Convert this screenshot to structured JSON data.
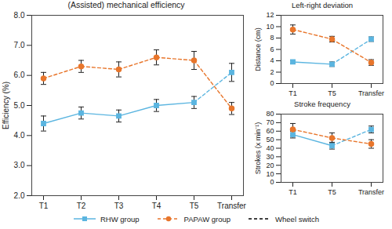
{
  "chart_data": [
    {
      "type": "line",
      "title": "(Assisted) mechanical efficiency",
      "y_label": "Efficiency (%)",
      "categories": [
        "T1",
        "T2",
        "T3",
        "T4",
        "T5",
        "Transfer"
      ],
      "ylim": [
        2,
        8
      ],
      "yticks": [
        2,
        3,
        4,
        5,
        6,
        7,
        8
      ],
      "grid": false,
      "legend": "bottom",
      "series": [
        {
          "name": "RHW group",
          "color": "#5bb5e0",
          "marker": "square",
          "line_style": "solid",
          "values": [
            4.4,
            4.75,
            4.65,
            5.0,
            5.1,
            6.1
          ],
          "errors": [
            0.25,
            0.2,
            0.2,
            0.2,
            0.2,
            0.3
          ]
        },
        {
          "name": "PAPAW group",
          "color": "#e8762c",
          "marker": "circle",
          "line_style": "dashed",
          "values": [
            5.9,
            6.3,
            6.2,
            6.6,
            6.5,
            4.9
          ],
          "errors": [
            0.2,
            0.2,
            0.25,
            0.25,
            0.3,
            0.2
          ]
        }
      ],
      "annotations": [
        {
          "text": "Wheel switch",
          "color": "#000000",
          "line_style": "dashed",
          "from": "T5",
          "to": "Transfer"
        }
      ]
    },
    {
      "type": "line",
      "title": "Left-right deviation",
      "y_label": "Distance (cm)",
      "categories": [
        "T1",
        "T5",
        "Transfer"
      ],
      "ylim": [
        0,
        12
      ],
      "yticks": [
        0,
        2,
        4,
        6,
        8,
        10,
        12
      ],
      "grid": false,
      "series": [
        {
          "name": "RHW group",
          "color": "#5bb5e0",
          "marker": "square",
          "line_style": "solid",
          "values": [
            3.8,
            3.4,
            7.8
          ],
          "errors": [
            0.3,
            0.4,
            0.4
          ]
        },
        {
          "name": "PAPAW group",
          "color": "#e8762c",
          "marker": "circle",
          "line_style": "dashed",
          "values": [
            9.5,
            7.8,
            3.7
          ],
          "errors": [
            0.8,
            0.5,
            0.5
          ]
        }
      ]
    },
    {
      "type": "line",
      "title": "Stroke frequency",
      "y_label": "Strokes (x min⁻¹)",
      "categories": [
        "T1",
        "T5",
        "Transfer"
      ],
      "ylim": [
        0,
        80
      ],
      "yticks": [
        0,
        10,
        20,
        30,
        40,
        50,
        60,
        70,
        80
      ],
      "grid": false,
      "series": [
        {
          "name": "RHW group",
          "color": "#5bb5e0",
          "marker": "square",
          "line_style": "solid",
          "values": [
            56,
            43,
            62
          ],
          "errors": [
            4,
            4,
            4
          ]
        },
        {
          "name": "PAPAW group",
          "color": "#e8762c",
          "marker": "circle",
          "line_style": "dashed",
          "values": [
            62,
            52,
            45
          ],
          "errors": [
            7,
            6,
            5
          ]
        }
      ]
    }
  ]
}
